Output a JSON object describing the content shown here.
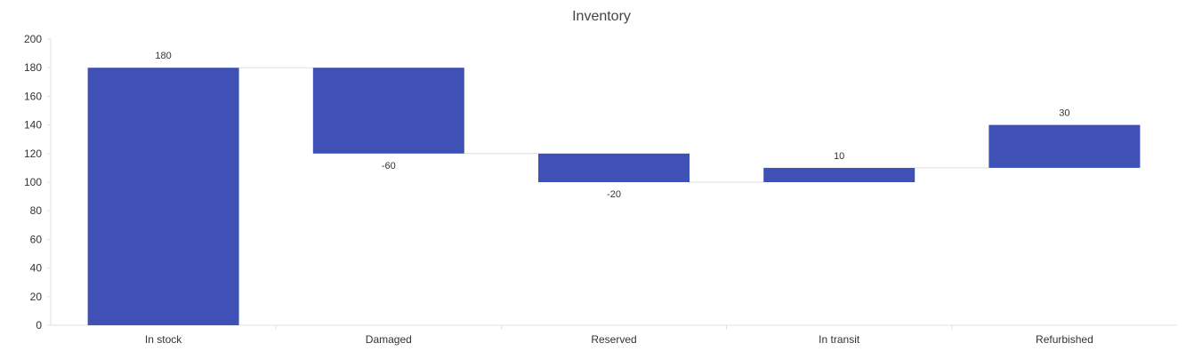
{
  "chart_data": {
    "type": "waterfall",
    "title": "Inventory",
    "xlabel": "",
    "ylabel": "",
    "categories": [
      "In stock",
      "Damaged",
      "Reserved",
      "In transit",
      "Refurbished"
    ],
    "values": [
      180,
      -60,
      -20,
      10,
      30
    ],
    "value_labels": [
      "180",
      "-60",
      "-20",
      "10",
      "30"
    ],
    "ylim": [
      0,
      200
    ],
    "yticks": [
      0,
      20,
      40,
      60,
      80,
      100,
      120,
      140,
      160,
      180,
      200
    ],
    "bar_color": "#4051b5",
    "connector_color": "#dddddd",
    "grid": false,
    "legend": "none"
  }
}
